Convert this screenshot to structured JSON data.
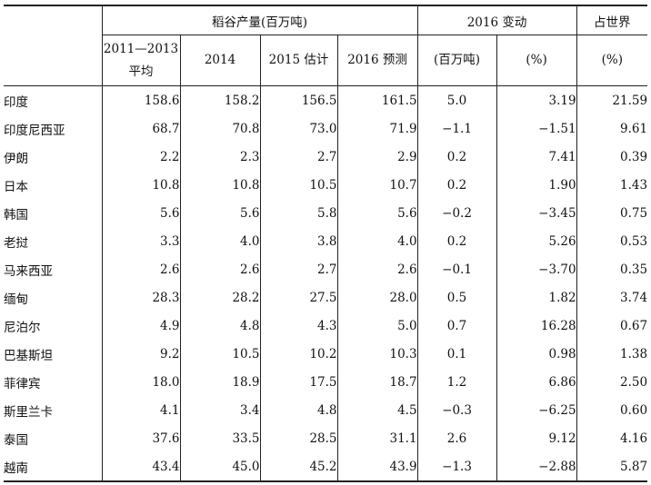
{
  "header": {
    "group_production": "稻谷产量(百万吨)",
    "group_change": "2016 变动",
    "group_world": "占世界",
    "col_avg_line1": "2011—2013",
    "col_avg_line2": "平均",
    "col_2014": "2014",
    "col_2015": "2015 估计",
    "col_2016": "2016 预测",
    "col_change_mt": "(百万吨)",
    "col_change_pct": "(%)",
    "col_world_pct": "(%)"
  },
  "rows": [
    {
      "country": "印度",
      "avg": "158.6",
      "y2014": "158.2",
      "y2015": "156.5",
      "y2016": "161.5",
      "chg": "5.0",
      "chg_pct": "3.19",
      "world": "21.59"
    },
    {
      "country": "印度尼西亚",
      "avg": "68.7",
      "y2014": "70.8",
      "y2015": "73.0",
      "y2016": "71.9",
      "chg": "−1.1",
      "chg_pct": "−1.51",
      "world": "9.61"
    },
    {
      "country": "伊朗",
      "avg": "2.2",
      "y2014": "2.3",
      "y2015": "2.7",
      "y2016": "2.9",
      "chg": "0.2",
      "chg_pct": "7.41",
      "world": "0.39"
    },
    {
      "country": "日本",
      "avg": "10.8",
      "y2014": "10.8",
      "y2015": "10.5",
      "y2016": "10.7",
      "chg": "0.2",
      "chg_pct": "1.90",
      "world": "1.43"
    },
    {
      "country": "韩国",
      "avg": "5.6",
      "y2014": "5.6",
      "y2015": "5.8",
      "y2016": "5.6",
      "chg": "−0.2",
      "chg_pct": "−3.45",
      "world": "0.75"
    },
    {
      "country": "老挝",
      "avg": "3.3",
      "y2014": "4.0",
      "y2015": "3.8",
      "y2016": "4.0",
      "chg": "0.2",
      "chg_pct": "5.26",
      "world": "0.53"
    },
    {
      "country": "马来西亚",
      "avg": "2.6",
      "y2014": "2.6",
      "y2015": "2.7",
      "y2016": "2.6",
      "chg": "−0.1",
      "chg_pct": "−3.70",
      "world": "0.35"
    },
    {
      "country": "缅甸",
      "avg": "28.3",
      "y2014": "28.2",
      "y2015": "27.5",
      "y2016": "28.0",
      "chg": "0.5",
      "chg_pct": "1.82",
      "world": "3.74"
    },
    {
      "country": "尼泊尔",
      "avg": "4.9",
      "y2014": "4.8",
      "y2015": "4.3",
      "y2016": "5.0",
      "chg": "0.7",
      "chg_pct": "16.28",
      "world": "0.67"
    },
    {
      "country": "巴基斯坦",
      "avg": "9.2",
      "y2014": "10.5",
      "y2015": "10.2",
      "y2016": "10.3",
      "chg": "0.1",
      "chg_pct": "0.98",
      "world": "1.38"
    },
    {
      "country": "菲律宾",
      "avg": "18.0",
      "y2014": "18.9",
      "y2015": "17.5",
      "y2016": "18.7",
      "chg": "1.2",
      "chg_pct": "6.86",
      "world": "2.50"
    },
    {
      "country": "斯里兰卡",
      "avg": "4.1",
      "y2014": "3.4",
      "y2015": "4.8",
      "y2016": "4.5",
      "chg": "−0.3",
      "chg_pct": "−6.25",
      "world": "0.60"
    },
    {
      "country": "泰国",
      "avg": "37.6",
      "y2014": "33.5",
      "y2015": "28.5",
      "y2016": "31.1",
      "chg": "2.6",
      "chg_pct": "9.12",
      "world": "4.16"
    },
    {
      "country": "越南",
      "avg": "43.4",
      "y2014": "45.0",
      "y2015": "45.2",
      "y2016": "43.9",
      "chg": "−1.3",
      "chg_pct": "−2.88",
      "world": "5.87"
    }
  ]
}
